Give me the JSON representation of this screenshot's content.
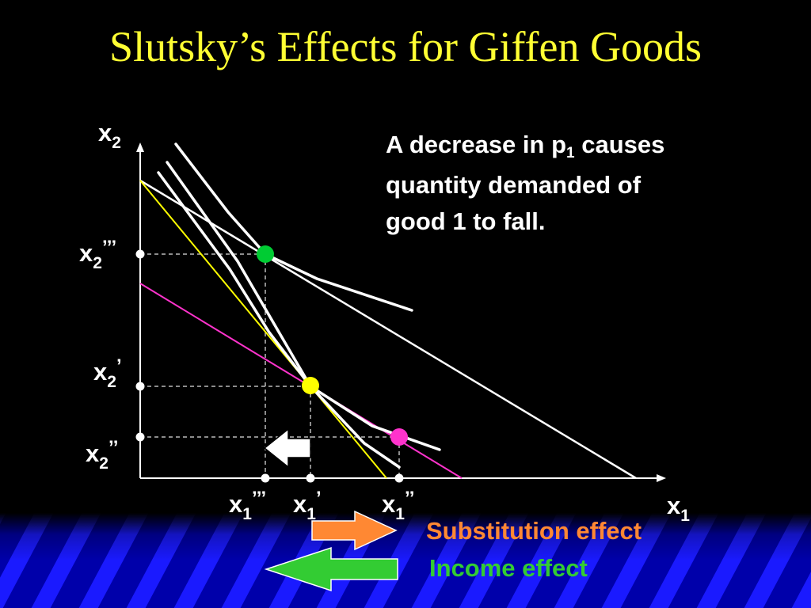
{
  "slide": {
    "title": "Slutsky’s Effects for Giffen Goods",
    "description": {
      "line1_pre": "A decrease in p",
      "line1_sub": "1",
      "line1_post": " causes",
      "line2": "quantity demanded of",
      "line3": "good 1 to fall."
    }
  },
  "axes": {
    "y_main": "x",
    "y_sub": "2",
    "x_main": "x",
    "x_sub": "1"
  },
  "y_ticks": [
    {
      "main": "x",
      "sub": "2",
      "prime": "’’’"
    },
    {
      "main": "x",
      "sub": "2",
      "prime": "’"
    },
    {
      "main": "x",
      "sub": "2",
      "prime": "’’"
    }
  ],
  "x_ticks": [
    {
      "main": "x",
      "sub": "1",
      "prime": "’’’"
    },
    {
      "main": "x",
      "sub": "1",
      "prime": "’"
    },
    {
      "main": "x",
      "sub": "1",
      "prime": "’’"
    }
  ],
  "legend": {
    "substitution": "Substitution effect",
    "income": "Income effect"
  },
  "colors": {
    "background": "#000000",
    "title": "#ffff33",
    "budget_original": "#ffff00",
    "budget_final": "#ff33cc",
    "point_original": "#ffff00",
    "point_final": "#ff33cc",
    "point_high": "#00cc33",
    "substitution": "#ff8833",
    "income": "#33cc33",
    "stripe_dark": "#0000aa",
    "stripe_bright": "#1a1aff"
  }
}
